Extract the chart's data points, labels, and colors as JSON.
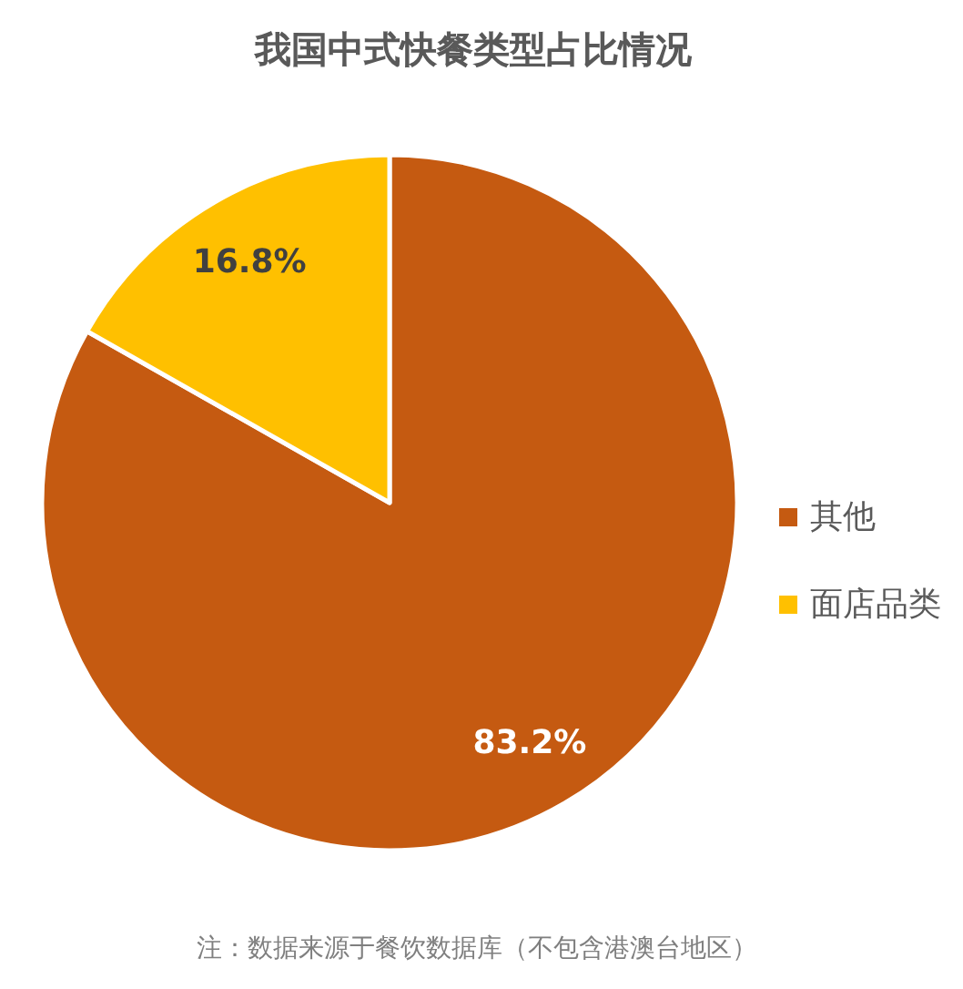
{
  "chart_data": {
    "type": "pie",
    "title": "我国中式快餐类型占比情况",
    "categories": [
      "其他",
      "面店品类"
    ],
    "values": [
      83.2,
      16.8
    ],
    "colors": [
      "#c55a11",
      "#ffc000"
    ],
    "value_labels": [
      "83.2%",
      "16.8%"
    ],
    "legend": "right",
    "annotations": [
      "注：数据来源于餐饮数据库（不包含港澳台地区）"
    ]
  }
}
